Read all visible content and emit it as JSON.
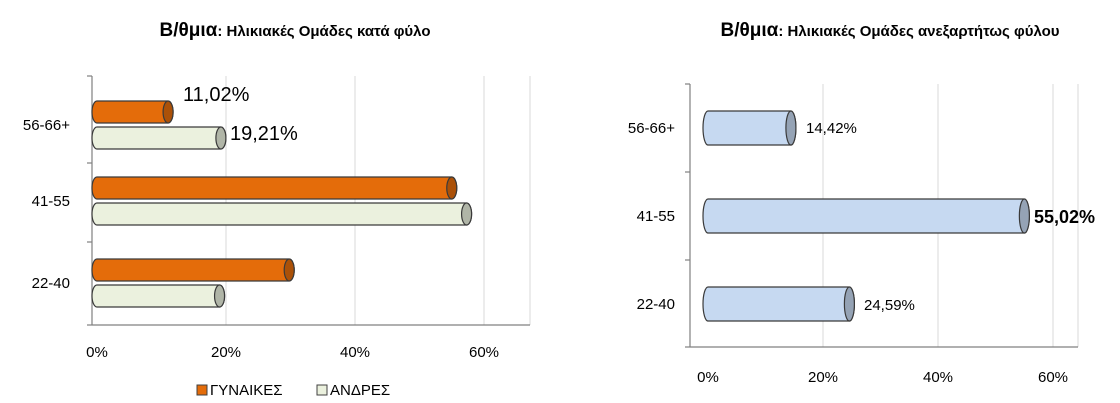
{
  "chart_data": [
    {
      "type": "bar",
      "orientation": "horizontal",
      "title_main": "Β/θμια",
      "title_sub": ": Ηλικιακές Ομάδες κατά φύλο",
      "categories": [
        "56-66+",
        "41-55",
        "22-40"
      ],
      "x_ticks": [
        "0%",
        "20%",
        "40%",
        "60%"
      ],
      "xlim": [
        0,
        70
      ],
      "grid": true,
      "legend_position": "bottom",
      "series": [
        {
          "name": "ΓΥΝΑΙΚΕΣ",
          "color": "#E46C0A",
          "values": [
            11.02,
            55.0,
            29.8
          ],
          "labels": [
            "11,02%",
            "",
            ""
          ]
        },
        {
          "name": "ΑΝΔΡΕΣ",
          "color": "#EBF1DE",
          "values": [
            19.21,
            57.3,
            19.0
          ],
          "labels": [
            "19,21%",
            "",
            ""
          ]
        }
      ]
    },
    {
      "type": "bar",
      "orientation": "horizontal",
      "title_main": "Β/θμια",
      "title_sub": ": Ηλικιακές Ομάδες ανεξαρτήτως φύλου",
      "categories": [
        "56-66+",
        "41-55",
        "22-40"
      ],
      "x_ticks": [
        "0%",
        "20%",
        "40%",
        "60%"
      ],
      "xlim": [
        0,
        70
      ],
      "grid": true,
      "series": [
        {
          "color": "#C6D9F1",
          "values": [
            14.42,
            55.02,
            24.59
          ],
          "labels": [
            "14,42%",
            "55,02%",
            "24,59%"
          ]
        }
      ]
    }
  ]
}
